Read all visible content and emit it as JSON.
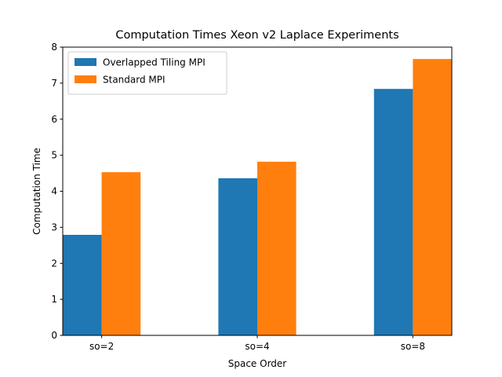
{
  "chart_data": {
    "type": "bar",
    "title": "Computation Times Xeon v2 Laplace Experiments",
    "xlabel": "Space Order",
    "ylabel": "Computation Time",
    "categories": [
      "so=2",
      "so=4",
      "so=8"
    ],
    "series": [
      {
        "name": "Overlapped Tiling MPI",
        "values": [
          2.79,
          4.36,
          6.84
        ],
        "color": "#1f77b4"
      },
      {
        "name": "Standard MPI",
        "values": [
          4.53,
          4.82,
          7.67
        ],
        "color": "#ff7f0e"
      }
    ],
    "ylim": [
      0,
      8
    ],
    "yticks": [
      0,
      1,
      2,
      3,
      4,
      5,
      6,
      7,
      8
    ],
    "grid": false,
    "legend_position": "top-left"
  }
}
